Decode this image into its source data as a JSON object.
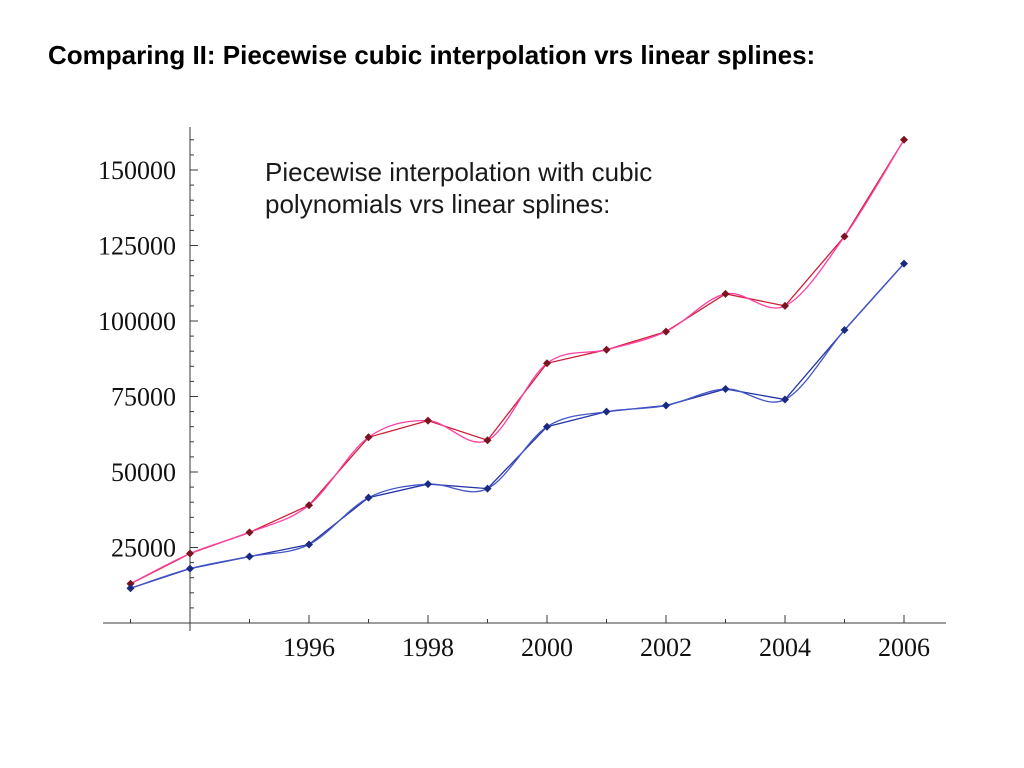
{
  "slide": {
    "title": "Comparing II: Piecewise cubic interpolation vrs linear splines:"
  },
  "chart_data": {
    "type": "line",
    "annotation_lines": [
      "Piecewise interpolation with cubic",
      "polynomials vrs linear splines:"
    ],
    "x": [
      1993,
      1994,
      1995,
      1996,
      1997,
      1998,
      1999,
      2000,
      2001,
      2002,
      2003,
      2004,
      2005,
      2006
    ],
    "series": [
      {
        "name": "upper-series-red",
        "values": [
          13000,
          23000,
          30000,
          39000,
          61500,
          67000,
          60500,
          86000,
          90500,
          96500,
          109000,
          105000,
          128000,
          160000
        ],
        "cubic_color": "#ff3fa4",
        "linear_color": "#cc2036",
        "marker_color": "#7a1420"
      },
      {
        "name": "lower-series-blue",
        "values": [
          11500,
          18000,
          22000,
          26000,
          41500,
          46000,
          44500,
          65000,
          70000,
          72000,
          77500,
          74000,
          97000,
          119000
        ],
        "cubic_color": "#4456c8",
        "linear_color": "#2334a4",
        "marker_color": "#1a2a80"
      }
    ],
    "xticks": [
      1996,
      1998,
      2000,
      2002,
      2004,
      2006
    ],
    "yticks": [
      25000,
      50000,
      75000,
      100000,
      125000,
      150000
    ],
    "xlim": [
      1992.7,
      2006.7
    ],
    "ylim": [
      0,
      168000
    ],
    "grid": false,
    "legend": "none",
    "axis_color": "#3a3a3a",
    "note": "Each series is drawn twice through the same points: a smooth piecewise cubic curve and straight linear-spline segments, with diamond markers at the data points."
  }
}
